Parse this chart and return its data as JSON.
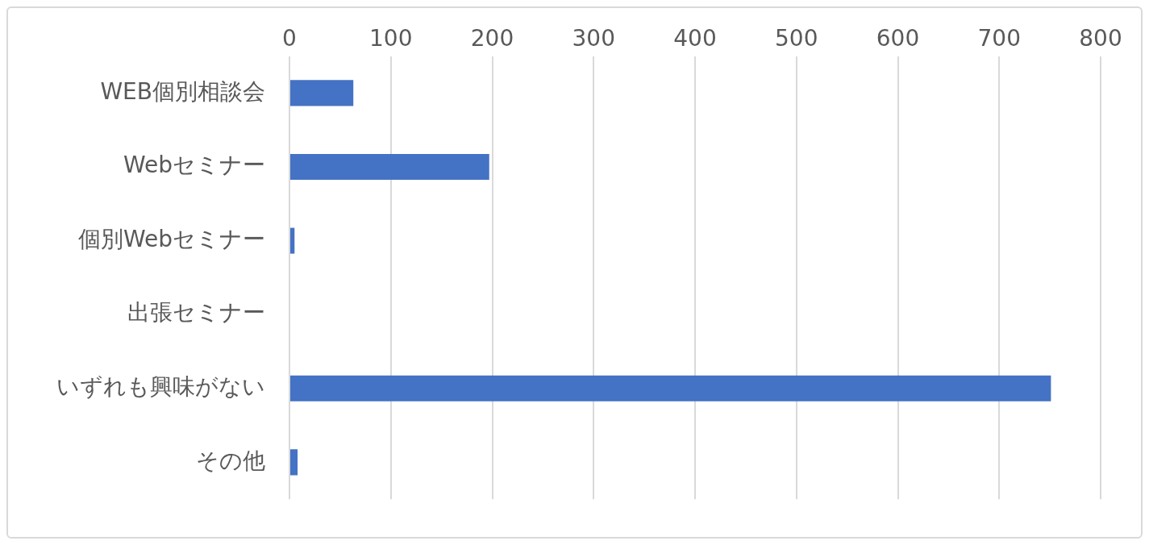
{
  "chart_data": {
    "type": "bar",
    "orientation": "horizontal",
    "categories": [
      "WEB個別相談会",
      "Webセミナー",
      "個別Webセミナー",
      "出張セミナー",
      "いずれも興味がない",
      "その他"
    ],
    "values": [
      63,
      197,
      5,
      0,
      751,
      8
    ],
    "color": "#4472c4",
    "xlim": [
      0,
      800
    ],
    "xticks": [
      0,
      100,
      200,
      300,
      400,
      500,
      600,
      700,
      800
    ],
    "grid": "x",
    "legend": false
  }
}
